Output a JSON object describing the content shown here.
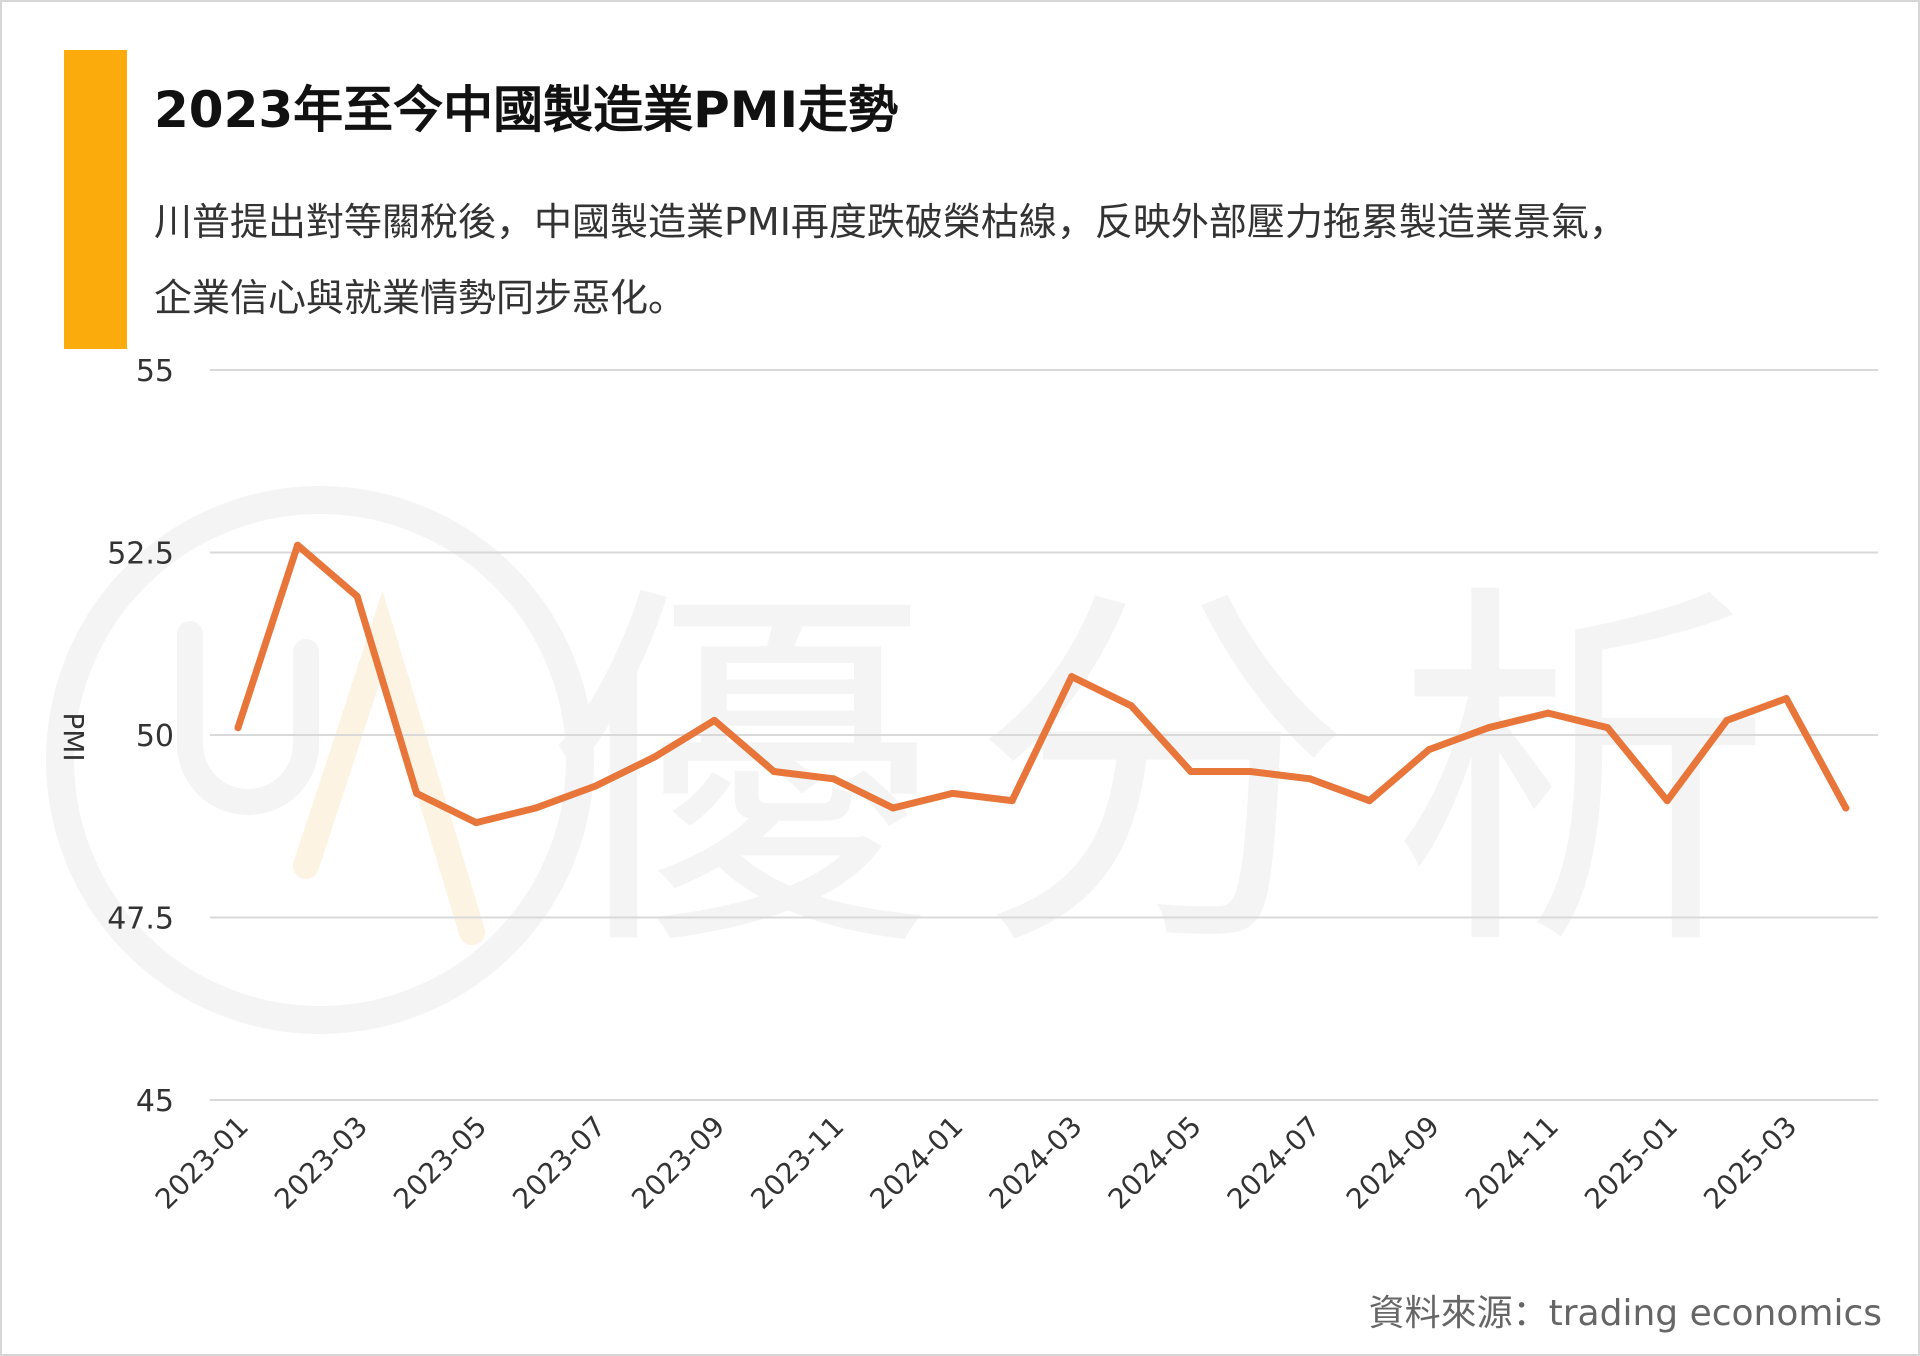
{
  "header": {
    "title": "2023年至今中國製造業PMI走勢",
    "subtitle_lines": [
      "川普提出對等關稅後，中國製造業PMI再度跌破榮枯線，反映外部壓力拖累製造業景氣，",
      "企業信心與就業情勢同步惡化。"
    ]
  },
  "watermark": {
    "text": "優分析"
  },
  "source": "資料來源：trading economics",
  "colors": {
    "accent": "#fbab0c",
    "line": "#e8763a",
    "grid": "#d9d9d9",
    "watermark": "#f4f4f4"
  },
  "chart_data": {
    "type": "line",
    "x": [
      "2023-01",
      "2023-02",
      "2023-03",
      "2023-04",
      "2023-05",
      "2023-06",
      "2023-07",
      "2023-08",
      "2023-09",
      "2023-10",
      "2023-11",
      "2023-12",
      "2024-01",
      "2024-02",
      "2024-03",
      "2024-04",
      "2024-05",
      "2024-06",
      "2024-07",
      "2024-08",
      "2024-09",
      "2024-10",
      "2024-11",
      "2024-12",
      "2025-01",
      "2025-02",
      "2025-03",
      "2025-04"
    ],
    "x_tick_labels": [
      "2023-01",
      "2023-03",
      "2023-05",
      "2023-07",
      "2023-09",
      "2023-11",
      "2024-01",
      "2024-03",
      "2024-05",
      "2024-07",
      "2024-09",
      "2024-11",
      "2025-01",
      "2025-03"
    ],
    "series": [
      {
        "values": [
          50.1,
          52.6,
          51.9,
          49.2,
          48.8,
          49.0,
          49.3,
          49.7,
          50.2,
          49.5,
          49.4,
          49.0,
          49.2,
          49.1,
          50.8,
          50.4,
          49.5,
          49.5,
          49.4,
          49.1,
          49.8,
          50.1,
          50.3,
          50.1,
          49.1,
          50.2,
          50.5,
          49.0
        ]
      }
    ],
    "ylabel": "PMI",
    "xlabel": "",
    "ylim": [
      45,
      55
    ],
    "y_ticks": [
      45,
      47.5,
      50,
      52.5,
      55
    ],
    "y_tick_labels": [
      "45",
      "47.5",
      "50",
      "52.5",
      "55"
    ],
    "grid": true,
    "legend": "none"
  }
}
